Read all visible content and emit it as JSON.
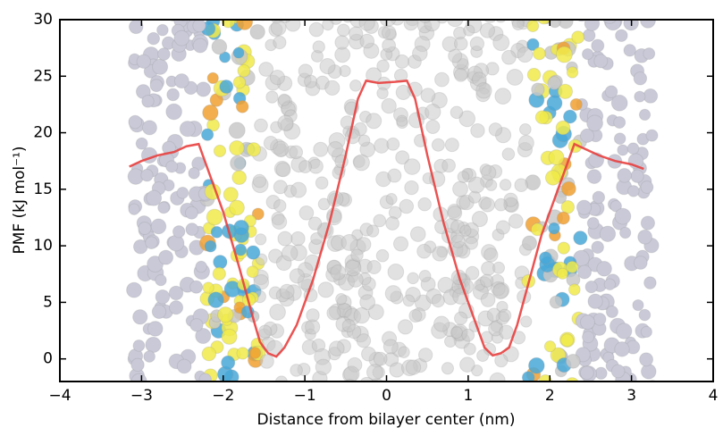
{
  "chart_data": {
    "type": "line",
    "xlabel": "Distance from bilayer center (nm)",
    "ylabel": "PMF (kJ mol⁻¹)",
    "x": [
      -3.15,
      -3.0,
      -2.8,
      -2.6,
      -2.45,
      -2.3,
      -2.2,
      -2.0,
      -1.8,
      -1.65,
      -1.55,
      -1.45,
      -1.35,
      -1.25,
      -1.1,
      -0.9,
      -0.7,
      -0.5,
      -0.35,
      -0.25,
      -0.1,
      0.1,
      0.25,
      0.35,
      0.5,
      0.7,
      0.9,
      1.1,
      1.2,
      1.3,
      1.4,
      1.5,
      1.6,
      1.75,
      1.9,
      2.05,
      2.2,
      2.3,
      2.45,
      2.6,
      2.8,
      3.0,
      3.15
    ],
    "series": [
      {
        "color": "#e8403f",
        "values": [
          17,
          17.5,
          18,
          18.3,
          18.8,
          19,
          17,
          13,
          8,
          4,
          1.5,
          0.5,
          0.2,
          1,
          3,
          7,
          12,
          18,
          23,
          24.6,
          24.4,
          24.5,
          24.6,
          23,
          18,
          12,
          7,
          3,
          1,
          0.3,
          0.5,
          1,
          3,
          7,
          11,
          14,
          17,
          19,
          18.5,
          18,
          17.5,
          17.2,
          16.8
        ]
      }
    ],
    "xlim": [
      -4,
      4
    ],
    "xticks": [
      {
        "value": -4,
        "label": "−4"
      },
      {
        "value": -3,
        "label": "−3"
      },
      {
        "value": -2,
        "label": "−2"
      },
      {
        "value": -1,
        "label": "−1"
      },
      0,
      1,
      2,
      3,
      4
    ],
    "ylim": [
      -2,
      30
    ],
    "yticks": [
      0,
      5,
      10,
      15,
      20,
      25,
      30
    ]
  }
}
